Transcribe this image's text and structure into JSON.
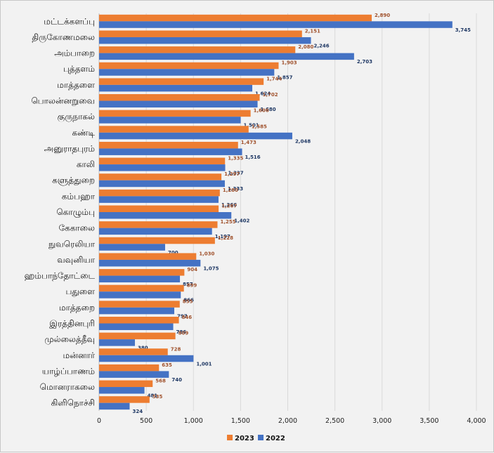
{
  "chart_data": {
    "type": "bar",
    "orientation": "horizontal",
    "categories": [
      "மட்டக்களப்பு",
      "திருகோணமலை",
      "அம்பாறை",
      "புத்தளம்",
      "மாத்தளை",
      "பொலன்னறுவை",
      "குருநாகல்",
      "கண்டி",
      "அனுராதபுரம்",
      "காலி",
      "களுத்துறை",
      "கம்பஹா",
      "கொழும்பு",
      "கேகாலை",
      "நுவரெலியா",
      "வவுனியா",
      "ஹம்பாந்தோட்டை",
      "பதுளை",
      "மாத்தறை",
      "இரத்தினபுரி",
      "முல்லைத்தீவு",
      "மன்னார்",
      "யாழ்ப்பாணம்",
      "மொனராகலை",
      "கிளிநொச்சி"
    ],
    "series": [
      {
        "name": "2023",
        "color": "#ed7d31",
        "values": [
          2890,
          2151,
          2080,
          1903,
          1744,
          1702,
          1606,
          1585,
          1473,
          1335,
          1297,
          1280,
          1267,
          1255,
          1228,
          1030,
          904,
          899,
          855,
          846,
          809,
          728,
          635,
          568,
          535
        ],
        "labels": [
          "2,890",
          "2,151",
          "2,080",
          "1,903",
          "1,744",
          "1,702",
          "1,606",
          "1,585",
          "1,473",
          "1,335",
          "1,297",
          "1,280",
          "1,267",
          "1,255",
          "1,228",
          "1,030",
          "904",
          "899",
          "855",
          "846",
          "809",
          "728",
          "635",
          "568",
          "535"
        ]
      },
      {
        "name": "2022",
        "color": "#4472c4",
        "values": [
          3745,
          2246,
          2703,
          1857,
          1624,
          1680,
          1501,
          2048,
          1516,
          1337,
          1333,
          1266,
          1402,
          1197,
          700,
          1075,
          857,
          866,
          797,
          786,
          380,
          1001,
          740,
          481,
          324
        ],
        "labels": [
          "3,745",
          "2,246",
          "2,703",
          "1,857",
          "1,624",
          "1,680",
          "1,501",
          "2,048",
          "1,516",
          "1,337",
          "1,333",
          "1,266",
          "1,402",
          "1,197",
          "700",
          "1,075",
          "857",
          "866",
          "797",
          "786",
          "380",
          "1,001",
          "740",
          "481",
          "324"
        ]
      }
    ],
    "xlim": [
      0,
      4000
    ],
    "xticks": [
      0,
      500,
      1000,
      1500,
      2000,
      2500,
      3000,
      3500,
      4000
    ],
    "xtick_labels": [
      "0",
      "500",
      "1,000",
      "1,500",
      "2,000",
      "2,500",
      "3,000",
      "3,500",
      "4,000"
    ],
    "grid": true,
    "legend_position": "bottom"
  },
  "colors": {
    "series_2023": "#ed7d31",
    "series_2022": "#4472c4",
    "label_2023": "#a0522d",
    "label_2022": "#1f3864",
    "gridline": "#d9d9d9"
  }
}
